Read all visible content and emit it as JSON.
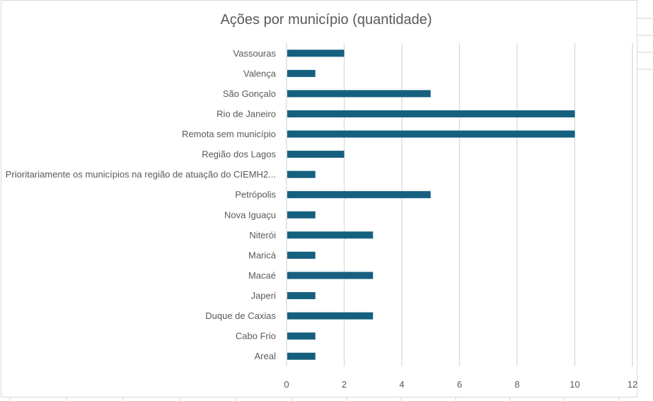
{
  "chart_data": {
    "type": "bar",
    "orientation": "horizontal",
    "title": "Ações por município (quantidade)",
    "xlabel": "",
    "ylabel": "",
    "categories": [
      "Vassouras",
      "Valença",
      "São Gonçalo",
      "Rio de Janeiro",
      "Remota sem município",
      "Região dos Lagos",
      "Prioritariamente os municípios na região de atuação do CIEMH2...",
      "Petrópolis",
      "Nova Iguaçu",
      "Niterói",
      "Maricá",
      "Macaé",
      "Japeri",
      "Duque de Caxias",
      "Cabo Frio",
      "Areal"
    ],
    "values": [
      2,
      1,
      5,
      10,
      10,
      2,
      1,
      5,
      1,
      3,
      1,
      3,
      1,
      3,
      1,
      1
    ],
    "xlim": [
      0,
      12
    ],
    "xticks": [
      0,
      2,
      4,
      6,
      8,
      10,
      12
    ],
    "grid": true,
    "legend": "none",
    "bar_color": "#16607f"
  }
}
